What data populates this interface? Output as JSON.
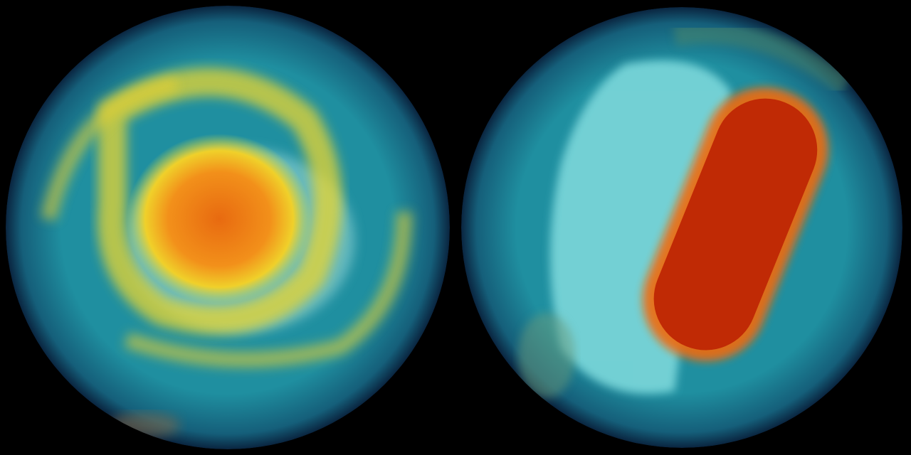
{
  "globes": [
    {
      "id": "left",
      "colors": {
        "ocean": "#1f8fa0",
        "rim": "#0d2f4a",
        "ring": "#e8d630",
        "core": "#f07a10",
        "ice": "#9fdcd8"
      }
    },
    {
      "id": "right",
      "colors": {
        "ocean": "#1f8fa0",
        "rim": "#0d2f4a",
        "land": "#8fe6e6",
        "core": "#c02a05",
        "edge": "#f06a10"
      }
    }
  ]
}
